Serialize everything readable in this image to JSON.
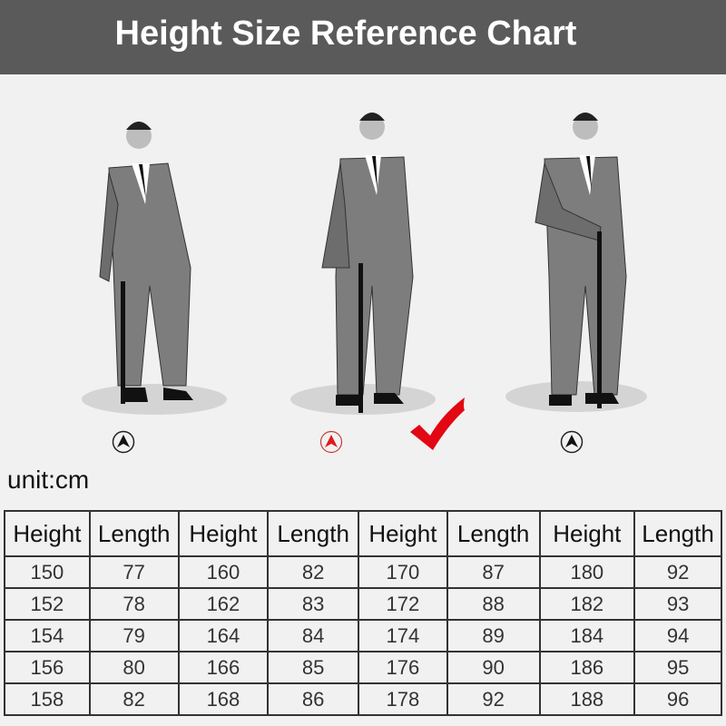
{
  "header": {
    "title": "Height Size Reference Chart"
  },
  "figures": [
    {
      "marker_icon": "up-arrow-circle-icon",
      "marker_color": "#222222",
      "selected": false
    },
    {
      "marker_icon": "up-arrow-circle-icon",
      "marker_color": "#e0191b",
      "selected": true
    },
    {
      "marker_icon": "up-arrow-circle-icon",
      "marker_color": "#222222",
      "selected": false
    }
  ],
  "check_icon": "checkmark-icon",
  "check_color": "#e30613",
  "unit_label": "unit:cm",
  "table": {
    "headers": [
      "Height",
      "Length",
      "Height",
      "Length",
      "Height",
      "Length",
      "Height",
      "Length"
    ],
    "rows": [
      [
        "150",
        "77",
        "160",
        "82",
        "170",
        "87",
        "180",
        "92"
      ],
      [
        "152",
        "78",
        "162",
        "83",
        "172",
        "88",
        "182",
        "93"
      ],
      [
        "154",
        "79",
        "164",
        "84",
        "174",
        "89",
        "184",
        "94"
      ],
      [
        "156",
        "80",
        "166",
        "85",
        "176",
        "90",
        "186",
        "95"
      ],
      [
        "158",
        "82",
        "168",
        "86",
        "178",
        "92",
        "188",
        "96"
      ]
    ]
  }
}
